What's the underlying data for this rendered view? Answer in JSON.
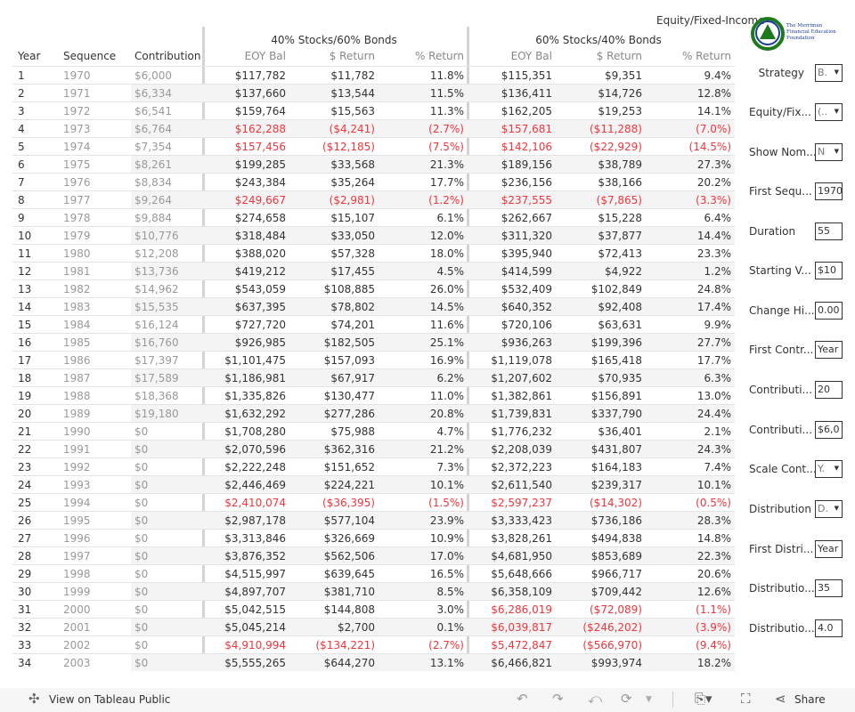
{
  "title": "Equity/Fixed-Income",
  "logo_text": "The Merriman Financial Education Foundation",
  "colors": {
    "negative": "#f0353b",
    "muted": "#999999",
    "logo_blue": "#1a3c9c",
    "logo_green": "#1e7a1e"
  },
  "groups": [
    "40% Stocks/60% Bonds",
    "60% Stocks/40% Bonds"
  ],
  "headers": [
    "Year",
    "Sequence",
    "Contribution",
    "EOY Bal",
    "$ Return",
    "% Return",
    "EOY Bal",
    "$ Return",
    "% Return"
  ],
  "rows": [
    [
      "1",
      "1970",
      "$6,000",
      "$117,782",
      "$11,782",
      "11.8%",
      "$115,351",
      "$9,351",
      "9.4%"
    ],
    [
      "2",
      "1971",
      "$6,334",
      "$137,660",
      "$13,544",
      "11.5%",
      "$136,411",
      "$14,726",
      "12.8%"
    ],
    [
      "3",
      "1972",
      "$6,541",
      "$159,764",
      "$15,563",
      "11.3%",
      "$162,205",
      "$19,253",
      "14.1%"
    ],
    [
      "4",
      "1973",
      "$6,764",
      "$162,288",
      "($4,241)",
      "(2.7%)",
      "$157,681",
      "($11,288)",
      "(7.0%)"
    ],
    [
      "5",
      "1974",
      "$7,354",
      "$157,456",
      "($12,185)",
      "(7.5%)",
      "$142,106",
      "($22,929)",
      "(14.5%)"
    ],
    [
      "6",
      "1975",
      "$8,261",
      "$199,285",
      "$33,568",
      "21.3%",
      "$189,156",
      "$38,789",
      "27.3%"
    ],
    [
      "7",
      "1976",
      "$8,834",
      "$243,384",
      "$35,264",
      "17.7%",
      "$236,156",
      "$38,166",
      "20.2%"
    ],
    [
      "8",
      "1977",
      "$9,264",
      "$249,667",
      "($2,981)",
      "(1.2%)",
      "$237,555",
      "($7,865)",
      "(3.3%)"
    ],
    [
      "9",
      "1978",
      "$9,884",
      "$274,658",
      "$15,107",
      "6.1%",
      "$262,667",
      "$15,228",
      "6.4%"
    ],
    [
      "10",
      "1979",
      "$10,776",
      "$318,484",
      "$33,050",
      "12.0%",
      "$311,320",
      "$37,877",
      "14.4%"
    ],
    [
      "11",
      "1980",
      "$12,208",
      "$388,020",
      "$57,328",
      "18.0%",
      "$395,940",
      "$72,413",
      "23.3%"
    ],
    [
      "12",
      "1981",
      "$13,736",
      "$419,212",
      "$17,455",
      "4.5%",
      "$414,599",
      "$4,922",
      "1.2%"
    ],
    [
      "13",
      "1982",
      "$14,962",
      "$543,059",
      "$108,885",
      "26.0%",
      "$532,409",
      "$102,849",
      "24.8%"
    ],
    [
      "14",
      "1983",
      "$15,535",
      "$637,395",
      "$78,802",
      "14.5%",
      "$640,352",
      "$92,408",
      "17.4%"
    ],
    [
      "15",
      "1984",
      "$16,124",
      "$727,720",
      "$74,201",
      "11.6%",
      "$720,106",
      "$63,631",
      "9.9%"
    ],
    [
      "16",
      "1985",
      "$16,760",
      "$926,985",
      "$182,505",
      "25.1%",
      "$936,263",
      "$199,396",
      "27.7%"
    ],
    [
      "17",
      "1986",
      "$17,397",
      "$1,101,475",
      "$157,093",
      "16.9%",
      "$1,119,078",
      "$165,418",
      "17.7%"
    ],
    [
      "18",
      "1987",
      "$17,589",
      "$1,186,981",
      "$67,917",
      "6.2%",
      "$1,207,602",
      "$70,935",
      "6.3%"
    ],
    [
      "19",
      "1988",
      "$18,368",
      "$1,335,826",
      "$130,477",
      "11.0%",
      "$1,382,861",
      "$156,891",
      "13.0%"
    ],
    [
      "20",
      "1989",
      "$19,180",
      "$1,632,292",
      "$277,286",
      "20.8%",
      "$1,739,831",
      "$337,790",
      "24.4%"
    ],
    [
      "21",
      "1990",
      "$0",
      "$1,708,280",
      "$75,988",
      "4.7%",
      "$1,776,232",
      "$36,401",
      "2.1%"
    ],
    [
      "22",
      "1991",
      "$0",
      "$2,070,596",
      "$362,316",
      "21.2%",
      "$2,208,039",
      "$431,807",
      "24.3%"
    ],
    [
      "23",
      "1992",
      "$0",
      "$2,222,248",
      "$151,652",
      "7.3%",
      "$2,372,223",
      "$164,183",
      "7.4%"
    ],
    [
      "24",
      "1993",
      "$0",
      "$2,446,469",
      "$224,221",
      "10.1%",
      "$2,611,540",
      "$239,317",
      "10.1%"
    ],
    [
      "25",
      "1994",
      "$0",
      "$2,410,074",
      "($36,395)",
      "(1.5%)",
      "$2,597,237",
      "($14,302)",
      "(0.5%)"
    ],
    [
      "26",
      "1995",
      "$0",
      "$2,987,178",
      "$577,104",
      "23.9%",
      "$3,333,423",
      "$736,186",
      "28.3%"
    ],
    [
      "27",
      "1996",
      "$0",
      "$3,313,846",
      "$326,669",
      "10.9%",
      "$3,828,261",
      "$494,838",
      "14.8%"
    ],
    [
      "28",
      "1997",
      "$0",
      "$3,876,352",
      "$562,506",
      "17.0%",
      "$4,681,950",
      "$853,689",
      "22.3%"
    ],
    [
      "29",
      "1998",
      "$0",
      "$4,515,997",
      "$639,645",
      "16.5%",
      "$5,648,666",
      "$966,717",
      "20.6%"
    ],
    [
      "30",
      "1999",
      "$0",
      "$4,897,707",
      "$381,710",
      "8.5%",
      "$6,358,109",
      "$709,442",
      "12.6%"
    ],
    [
      "31",
      "2000",
      "$0",
      "$5,042,515",
      "$144,808",
      "3.0%",
      "$6,286,019",
      "($72,089)",
      "(1.1%)"
    ],
    [
      "32",
      "2001",
      "$0",
      "$5,045,214",
      "$2,700",
      "0.1%",
      "$6,039,817",
      "($246,202)",
      "(3.9%)"
    ],
    [
      "33",
      "2002",
      "$0",
      "$4,910,994",
      "($134,221)",
      "(2.7%)",
      "$5,472,847",
      "($566,970)",
      "(9.4%)"
    ],
    [
      "34",
      "2003",
      "$0",
      "$5,555,265",
      "$644,270",
      "13.1%",
      "$6,466,821",
      "$993,974",
      "18.2%"
    ]
  ],
  "parameters": [
    {
      "label": "Strategy",
      "value": "B.",
      "type": "dropdown"
    },
    {
      "label": "Equity/Fix...",
      "value": "(..",
      "type": "dropdown"
    },
    {
      "label": "Show Nom...",
      "value": "N",
      "type": "dropdown"
    },
    {
      "label": "First Sequ...",
      "value": "1970",
      "type": "input"
    },
    {
      "label": "Duration",
      "value": "55",
      "type": "input"
    },
    {
      "label": "Starting V...",
      "value": "$10",
      "type": "input"
    },
    {
      "label": "Change Hi...",
      "value": "0.00",
      "type": "input"
    },
    {
      "label": "First Contr...",
      "value": "Year",
      "type": "input"
    },
    {
      "label": "Contributi...",
      "value": "20",
      "type": "input"
    },
    {
      "label": "Contributi...",
      "value": "$6,0",
      "type": "input"
    },
    {
      "label": "Scale Cont...",
      "value": "Y.",
      "type": "dropdown"
    },
    {
      "label": "Distribution",
      "value": "D.",
      "type": "dropdown"
    },
    {
      "label": "First Distri...",
      "value": "Year",
      "type": "input"
    },
    {
      "label": "Distributio...",
      "value": "35",
      "type": "input"
    },
    {
      "label": "Distributio...",
      "value": "4.0",
      "type": "input"
    }
  ],
  "toolbar": {
    "view_on_public": "View on Tableau Public",
    "share": "Share"
  }
}
